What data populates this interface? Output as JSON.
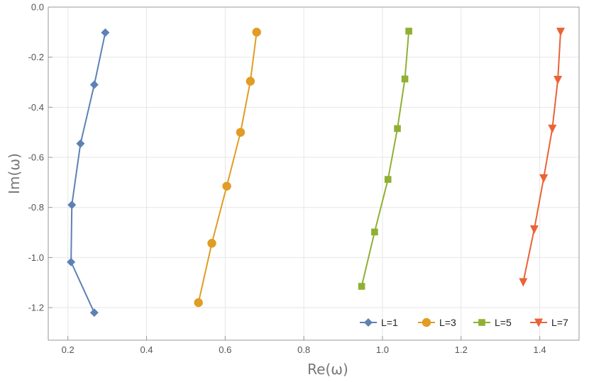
{
  "chart_data": {
    "type": "line",
    "xlabel": "Re(ω)",
    "ylabel": "Im(ω)",
    "xlim": [
      0.15,
      1.5
    ],
    "ylim": [
      -1.33,
      0.0
    ],
    "x_ticks": [
      0.2,
      0.4,
      0.6,
      0.8,
      1.0,
      1.2,
      1.4
    ],
    "x_tick_labels": [
      "0.2",
      "0.4",
      "0.6",
      "0.8",
      "1.0",
      "1.2",
      "1.4"
    ],
    "y_ticks": [
      0.0,
      -0.2,
      -0.4,
      -0.6,
      -0.8,
      -1.0,
      -1.2
    ],
    "y_tick_labels": [
      "0.0",
      "-0.2",
      "-0.4",
      "-0.6",
      "-0.8",
      "-1.0",
      "-1.2"
    ],
    "grid": true,
    "legend_position": "bottom-right",
    "series": [
      {
        "name": "L=1",
        "color": "#5e81b5",
        "marker": "diamond",
        "points": [
          [
            0.295,
            -0.102
          ],
          [
            0.267,
            -0.31
          ],
          [
            0.232,
            -0.545
          ],
          [
            0.21,
            -0.79
          ],
          [
            0.208,
            -1.018
          ],
          [
            0.267,
            -1.22
          ]
        ]
      },
      {
        "name": "L=3",
        "color": "#e19c24",
        "marker": "circle",
        "points": [
          [
            0.68,
            -0.1
          ],
          [
            0.664,
            -0.296
          ],
          [
            0.639,
            -0.5
          ],
          [
            0.604,
            -0.715
          ],
          [
            0.566,
            -0.943
          ],
          [
            0.532,
            -1.18
          ]
        ]
      },
      {
        "name": "L=5",
        "color": "#8fb032",
        "marker": "square",
        "points": [
          [
            1.067,
            -0.096
          ],
          [
            1.057,
            -0.287
          ],
          [
            1.038,
            -0.485
          ],
          [
            1.014,
            -0.688
          ],
          [
            0.98,
            -0.898
          ],
          [
            0.947,
            -1.115
          ]
        ]
      },
      {
        "name": "L=7",
        "color": "#eb6235",
        "marker": "triangle-down",
        "points": [
          [
            1.453,
            -0.098
          ],
          [
            1.446,
            -0.29
          ],
          [
            1.432,
            -0.485
          ],
          [
            1.41,
            -0.683
          ],
          [
            1.386,
            -0.887
          ],
          [
            1.358,
            -1.098
          ]
        ]
      }
    ]
  }
}
